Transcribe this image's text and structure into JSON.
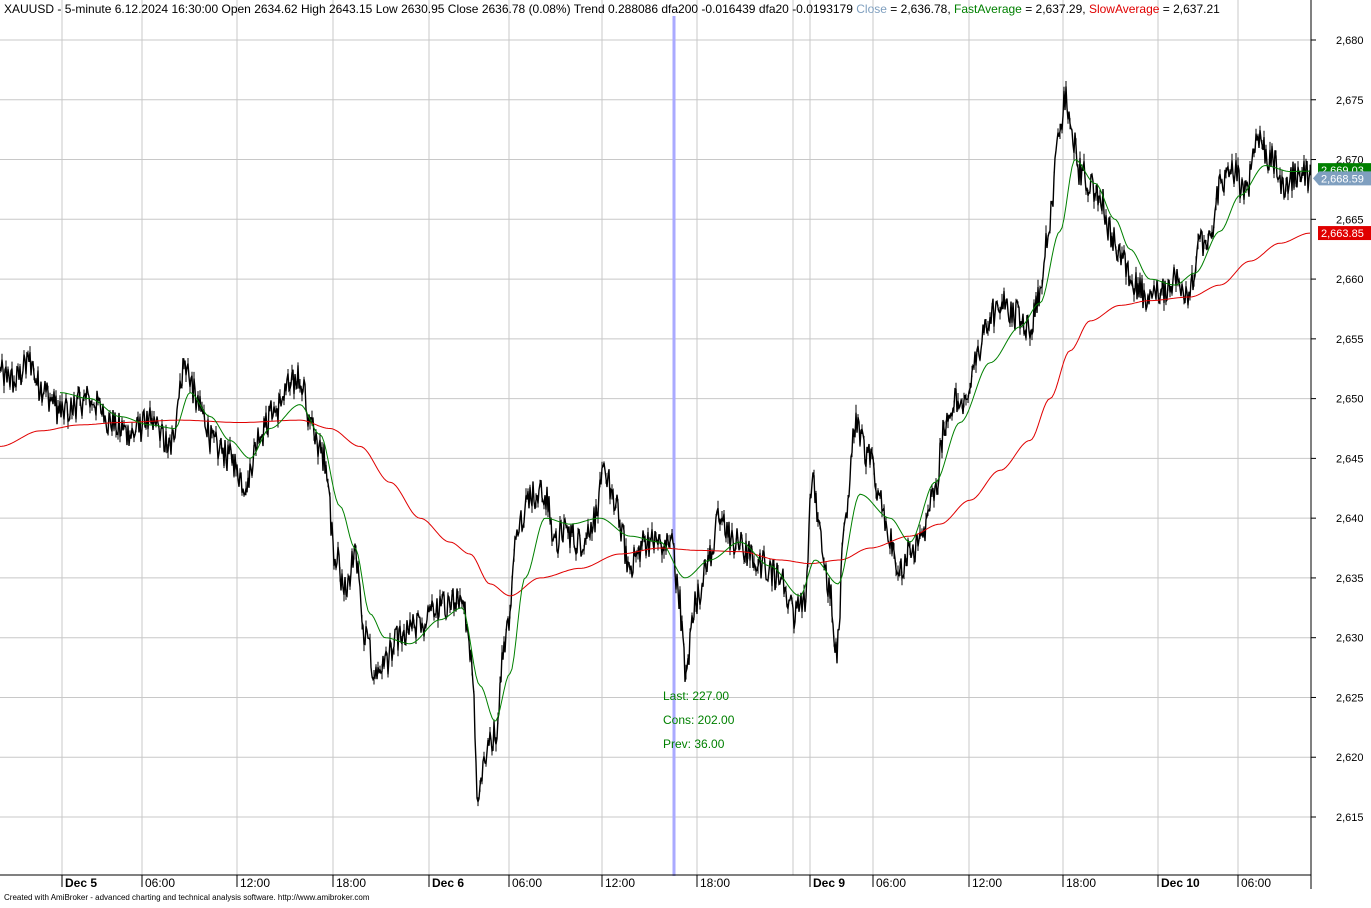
{
  "header": {
    "symbol": "XAUUSD",
    "interval": "5-minute",
    "datetime": "6.12.2024 16:30:00",
    "open_label": "Open",
    "open": "2634.62",
    "high_label": "High",
    "high": "2643.15",
    "low_label": "Low",
    "low": "2630.95",
    "close_label": "Close",
    "close": "2636.78",
    "change": "(0.08%)",
    "trend_label": "Trend",
    "trend": "0.288086",
    "dfa200_label": "dfa200",
    "dfa200": "-0.016439",
    "dfa20_label": "dfa20",
    "dfa20": "-0.0193179",
    "ind_close_label": "Close",
    "ind_close_value": "2,636.78",
    "ind_fast_label": "FastAverage",
    "ind_fast_value": "2,637.29",
    "ind_slow_label": "SlowAverage",
    "ind_slow_value": "2,637.21"
  },
  "footer": {
    "credit": "Created with AmiBroker - advanced charting and technical analysis software. http://www.amibroker.com"
  },
  "colors": {
    "price": "#000000",
    "fast_average": "#008000",
    "slow_average": "#e00000",
    "selector": "#aaaaff",
    "grid": "#c8c8c8",
    "close_label_bg": "#7f9fbf",
    "fast_label_bg": "#008000",
    "slow_label_bg": "#e00000",
    "annotation_text": "#008000",
    "header_close": "#7f9fbf"
  },
  "chart_data": {
    "type": "line",
    "title": "XAUUSD - 5-minute",
    "ylim": [
      2610,
      2681
    ],
    "y_ticks": [
      "2,615",
      "2,620",
      "2,625",
      "2,630",
      "2,635",
      "2,640",
      "2,645",
      "2,650",
      "2,655",
      "2,660",
      "2,665",
      "2,670",
      "2,675",
      "2,680"
    ],
    "x_time_labels": [
      {
        "label": "Dec 5",
        "bold": true
      },
      {
        "label": "06:00",
        "bold": false
      },
      {
        "label": "12:00",
        "bold": false
      },
      {
        "label": "18:00",
        "bold": false
      },
      {
        "label": "Dec 6",
        "bold": true
      },
      {
        "label": "06:00",
        "bold": false
      },
      {
        "label": "12:00",
        "bold": false
      },
      {
        "label": "18:00",
        "bold": false
      },
      {
        "label": "Dec 9",
        "bold": true
      },
      {
        "label": "06:00",
        "bold": false
      },
      {
        "label": "12:00",
        "bold": false
      },
      {
        "label": "18:00",
        "bold": false
      },
      {
        "label": "Dec 10",
        "bold": true
      },
      {
        "label": "06:00",
        "bold": false
      }
    ],
    "grid": true,
    "series": [
      {
        "name": "Close",
        "keypoints": [
          [
            0,
            2652
          ],
          [
            15,
            2651.5
          ],
          [
            30,
            2653
          ],
          [
            40,
            2651
          ],
          [
            60,
            2649
          ],
          [
            90,
            2650
          ],
          [
            110,
            2648
          ],
          [
            130,
            2647
          ],
          [
            150,
            2648
          ],
          [
            170,
            2646
          ],
          [
            185,
            2653
          ],
          [
            200,
            2649
          ],
          [
            215,
            2646
          ],
          [
            230,
            2645
          ],
          [
            245,
            2643
          ],
          [
            260,
            2647
          ],
          [
            275,
            2649
          ],
          [
            290,
            2651
          ],
          [
            300,
            2652
          ],
          [
            310,
            2648
          ],
          [
            325,
            2645
          ],
          [
            335,
            2637
          ],
          [
            345,
            2634
          ],
          [
            355,
            2637
          ],
          [
            365,
            2630
          ],
          [
            375,
            2627
          ],
          [
            385,
            2628
          ],
          [
            400,
            2630
          ],
          [
            420,
            2631
          ],
          [
            440,
            2632.5
          ],
          [
            455,
            2633
          ],
          [
            465,
            2632
          ],
          [
            472,
            2628
          ],
          [
            478,
            2617
          ],
          [
            485,
            2620
          ],
          [
            495,
            2622
          ],
          [
            505,
            2630
          ],
          [
            520,
            2640
          ],
          [
            530,
            2642
          ],
          [
            545,
            2642
          ],
          [
            555,
            2638
          ],
          [
            565,
            2639
          ],
          [
            580,
            2638
          ],
          [
            595,
            2640
          ],
          [
            605,
            2644
          ],
          [
            615,
            2641
          ],
          [
            630,
            2636
          ],
          [
            645,
            2638
          ],
          [
            660,
            2638
          ],
          [
            672,
            2638
          ],
          [
            678,
            2634
          ],
          [
            686,
            2627
          ],
          [
            695,
            2633
          ],
          [
            710,
            2637
          ],
          [
            720,
            2640
          ],
          [
            735,
            2638
          ],
          [
            750,
            2637
          ],
          [
            765,
            2636
          ],
          [
            780,
            2635
          ],
          [
            795,
            2632
          ],
          [
            805,
            2633
          ],
          [
            812,
            2643
          ],
          [
            822,
            2638
          ],
          [
            830,
            2634
          ],
          [
            837,
            2629
          ],
          [
            845,
            2640
          ],
          [
            855,
            2648
          ],
          [
            868,
            2645
          ],
          [
            880,
            2642
          ],
          [
            890,
            2638
          ],
          [
            900,
            2636
          ],
          [
            910,
            2637
          ],
          [
            920,
            2638
          ],
          [
            935,
            2642
          ],
          [
            945,
            2648
          ],
          [
            955,
            2650
          ],
          [
            965,
            2649
          ],
          [
            975,
            2653
          ],
          [
            985,
            2656
          ],
          [
            1000,
            2658
          ],
          [
            1015,
            2657
          ],
          [
            1030,
            2656
          ],
          [
            1040,
            2659
          ],
          [
            1050,
            2665
          ],
          [
            1058,
            2671
          ],
          [
            1065,
            2675
          ],
          [
            1072,
            2672
          ],
          [
            1080,
            2669
          ],
          [
            1090,
            2668
          ],
          [
            1100,
            2667
          ],
          [
            1110,
            2664
          ],
          [
            1120,
            2662
          ],
          [
            1130,
            2660
          ],
          [
            1140,
            2659
          ],
          [
            1150,
            2658
          ],
          [
            1160,
            2659
          ],
          [
            1175,
            2660
          ],
          [
            1190,
            2659
          ],
          [
            1200,
            2663
          ],
          [
            1210,
            2663
          ],
          [
            1220,
            2668
          ],
          [
            1235,
            2669
          ],
          [
            1245,
            2667
          ],
          [
            1258,
            2672
          ],
          [
            1270,
            2670
          ],
          [
            1285,
            2668
          ],
          [
            1300,
            2669
          ],
          [
            1310,
            2668.6
          ]
        ]
      },
      {
        "name": "FastAverage",
        "keypoints": [
          [
            60,
            2650.5
          ],
          [
            90,
            2650
          ],
          [
            120,
            2648.5
          ],
          [
            150,
            2647.8
          ],
          [
            175,
            2647.5
          ],
          [
            190,
            2650.5
          ],
          [
            210,
            2648.5
          ],
          [
            230,
            2646.5
          ],
          [
            250,
            2645
          ],
          [
            270,
            2647.5
          ],
          [
            300,
            2649.5
          ],
          [
            320,
            2647
          ],
          [
            340,
            2641
          ],
          [
            355,
            2637.5
          ],
          [
            370,
            2632
          ],
          [
            385,
            2630
          ],
          [
            410,
            2629.5
          ],
          [
            440,
            2631.5
          ],
          [
            462,
            2632.5
          ],
          [
            480,
            2626
          ],
          [
            495,
            2623
          ],
          [
            510,
            2627
          ],
          [
            525,
            2635
          ],
          [
            545,
            2640
          ],
          [
            570,
            2639.5
          ],
          [
            600,
            2640
          ],
          [
            630,
            2638.5
          ],
          [
            660,
            2638
          ],
          [
            685,
            2635
          ],
          [
            710,
            2636.5
          ],
          [
            740,
            2638
          ],
          [
            770,
            2636
          ],
          [
            800,
            2633.5
          ],
          [
            815,
            2636.5
          ],
          [
            838,
            2634.5
          ],
          [
            860,
            2642
          ],
          [
            890,
            2640
          ],
          [
            910,
            2638
          ],
          [
            935,
            2643
          ],
          [
            960,
            2648
          ],
          [
            990,
            2653
          ],
          [
            1020,
            2656
          ],
          [
            1040,
            2658
          ],
          [
            1060,
            2664
          ],
          [
            1075,
            2670
          ],
          [
            1095,
            2668
          ],
          [
            1115,
            2665
          ],
          [
            1130,
            2662.5
          ],
          [
            1150,
            2660
          ],
          [
            1175,
            2659.5
          ],
          [
            1195,
            2660.5
          ],
          [
            1220,
            2664
          ],
          [
            1240,
            2667
          ],
          [
            1265,
            2669.5
          ],
          [
            1290,
            2669
          ],
          [
            1310,
            2669.03
          ]
        ]
      },
      {
        "name": "SlowAverage",
        "keypoints": [
          [
            0,
            2646
          ],
          [
            40,
            2647.3
          ],
          [
            80,
            2647.8
          ],
          [
            120,
            2648
          ],
          [
            180,
            2648.2
          ],
          [
            240,
            2648
          ],
          [
            300,
            2648.2
          ],
          [
            330,
            2647.5
          ],
          [
            360,
            2646
          ],
          [
            390,
            2643
          ],
          [
            420,
            2640
          ],
          [
            450,
            2638
          ],
          [
            470,
            2637
          ],
          [
            490,
            2634.5
          ],
          [
            510,
            2633.5
          ],
          [
            540,
            2635
          ],
          [
            580,
            2635.8
          ],
          [
            620,
            2637
          ],
          [
            660,
            2637.5
          ],
          [
            700,
            2637.3
          ],
          [
            740,
            2637.2
          ],
          [
            780,
            2636.5
          ],
          [
            810,
            2636.2
          ],
          [
            840,
            2636.5
          ],
          [
            870,
            2637.5
          ],
          [
            910,
            2638.5
          ],
          [
            940,
            2639.5
          ],
          [
            970,
            2641.5
          ],
          [
            1000,
            2644
          ],
          [
            1030,
            2646.5
          ],
          [
            1050,
            2650
          ],
          [
            1070,
            2654
          ],
          [
            1090,
            2656.5
          ],
          [
            1120,
            2657.8
          ],
          [
            1150,
            2658.2
          ],
          [
            1190,
            2658.5
          ],
          [
            1220,
            2659.5
          ],
          [
            1250,
            2661.5
          ],
          [
            1280,
            2663
          ],
          [
            1310,
            2663.85
          ]
        ]
      }
    ],
    "price_labels": [
      {
        "name": "FastAverage",
        "value": "2,669.03",
        "y": 2669.03
      },
      {
        "name": "Close",
        "value": "2,668.59",
        "y": 2668.59
      },
      {
        "name": "SlowAverage",
        "value": "2,663.85",
        "y": 2663.85
      }
    ],
    "annotations": {
      "last": "Last: 227.00",
      "cons": "Cons: 202.00",
      "prev": "Prev: 36.00"
    }
  }
}
